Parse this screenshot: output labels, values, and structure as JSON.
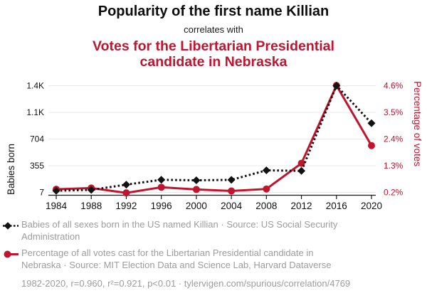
{
  "header": {
    "title": "Popularity of the first name Killian",
    "connector": "correlates with",
    "subtitle": "Votes for the Libertarian Presidential candidate in Nebraska"
  },
  "chart_data": {
    "type": "line",
    "x": [
      1984,
      1988,
      1992,
      1996,
      2000,
      2004,
      2008,
      2012,
      2016,
      2020
    ],
    "x_tick_labels": [
      "1984",
      "1988",
      "1992",
      "1996",
      "2000",
      "2004",
      "2008",
      "2012",
      "2016",
      "2020"
    ],
    "series": [
      {
        "name": "Babies of all sexes born in the US named Killian",
        "axis": "left",
        "color": "#121212",
        "style": "dashed",
        "marker": "diamond",
        "values": [
          28,
          40,
          108,
          172,
          165,
          171,
          295,
          288,
          1402,
          912
        ]
      },
      {
        "name": "Percentage of all votes cast for the Libertarian Presidential candidate in Nebraska",
        "axis": "right",
        "color": "#c0142f",
        "style": "solid",
        "marker": "circle",
        "values": [
          0.33,
          0.38,
          0.18,
          0.41,
          0.32,
          0.26,
          0.34,
          1.4,
          4.61,
          2.13
        ]
      }
    ],
    "left_axis": {
      "label": "Babies born",
      "min": 7,
      "max": 1402,
      "tick_labels": [
        "1.4K",
        "1.1K",
        "704",
        "355",
        "7"
      ]
    },
    "right_axis": {
      "label": "Percentage of votes",
      "min": 0.2,
      "max": 4.6,
      "tick_labels": [
        "4.6%",
        "3.5%",
        "2.4%",
        "1.3%",
        "0.2%"
      ]
    },
    "grid": true,
    "legend_position": "bottom"
  },
  "legend": {
    "entries": [
      {
        "marker": "black-diamond-dashed",
        "text": "Babies of all sexes born in the US named Killian · Source: US Social Security Administration"
      },
      {
        "marker": "red-circle-solid",
        "text": "Percentage of all votes cast for the Libertarian Presidential candidate in Nebraska · Source: MIT Election Data and Science Lab, Harvard Dataverse"
      }
    ],
    "footnote": "1982-2020, r=0.960, r²=0.921, p<0.01 · tylervigen.com/spurious/correlation/4769"
  },
  "colors": {
    "accent_red": "#c0142f",
    "series_black": "#121212",
    "legend_gray": "#9c9c9c",
    "gridline": "#e8e8e8",
    "axis_line": "#1a1a1a"
  }
}
